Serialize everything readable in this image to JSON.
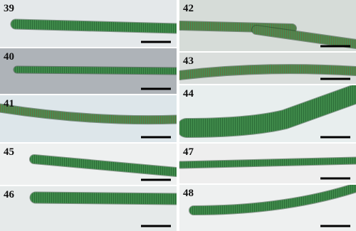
{
  "panels": [
    {
      "label": "39"
    },
    {
      "label": "40"
    },
    {
      "label": "41"
    },
    {
      "label": "42"
    },
    {
      "label": "43"
    },
    {
      "label": "44"
    },
    {
      "label": "45"
    },
    {
      "label": "46"
    },
    {
      "label": "47"
    },
    {
      "label": "48"
    }
  ]
}
